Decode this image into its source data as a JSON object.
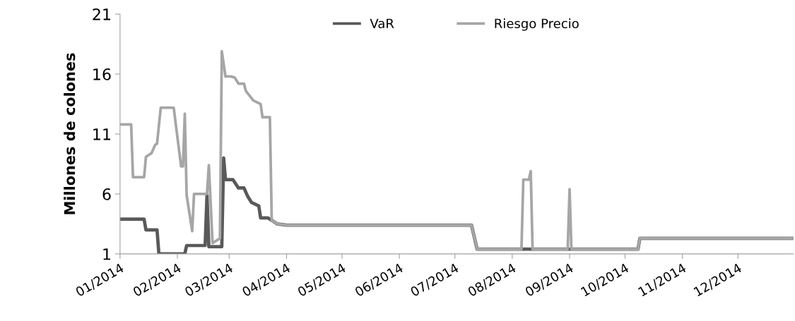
{
  "chart_data": {
    "type": "line",
    "ylabel": "Millones de colones",
    "ylim": [
      1,
      21
    ],
    "yticks": [
      1,
      6,
      11,
      16,
      21
    ],
    "xlim": [
      "2014-01-01",
      "2014-12-31"
    ],
    "xticks": [
      {
        "value": "2014-01-01",
        "label": "01/2014"
      },
      {
        "value": "2014-02-01",
        "label": "02/2014"
      },
      {
        "value": "2014-03-01",
        "label": "03/2014"
      },
      {
        "value": "2014-04-01",
        "label": "04/2014"
      },
      {
        "value": "2014-05-01",
        "label": "05/2014"
      },
      {
        "value": "2014-06-01",
        "label": "06/2014"
      },
      {
        "value": "2014-07-01",
        "label": "07/2014"
      },
      {
        "value": "2014-08-01",
        "label": "08/2014"
      },
      {
        "value": "2014-09-01",
        "label": "09/2014"
      },
      {
        "value": "2014-10-01",
        "label": "10/2014"
      },
      {
        "value": "2014-11-01",
        "label": "11/2014"
      },
      {
        "value": "2014-12-01",
        "label": "12/2014"
      }
    ],
    "grid": false,
    "legend": "top",
    "marker": "none",
    "line_style": "solid",
    "series": [
      {
        "name": "VaR",
        "color": "#595959",
        "x": [
          "2014-01-01",
          "2014-01-14",
          "2014-01-15",
          "2014-01-21",
          "2014-01-22",
          "2014-02-05",
          "2014-02-06",
          "2014-02-16",
          "2014-02-17",
          "2014-02-18",
          "2014-02-25",
          "2014-02-26",
          "2014-02-27",
          "2014-03-03",
          "2014-03-06",
          "2014-03-09",
          "2014-03-11",
          "2014-03-13",
          "2014-03-17",
          "2014-03-18",
          "2014-03-22",
          "2014-03-24",
          "2014-03-27",
          "2014-04-01",
          "2014-07-10",
          "2014-07-13",
          "2014-10-08",
          "2014-10-09",
          "2014-12-31"
        ],
        "values": [
          3.9,
          3.9,
          3.0,
          3.0,
          1.0,
          1.0,
          1.7,
          1.7,
          5.9,
          1.6,
          1.6,
          9.0,
          7.2,
          7.2,
          6.5,
          6.5,
          5.8,
          5.3,
          5.0,
          4.0,
          4.0,
          3.8,
          3.5,
          3.4,
          3.4,
          1.4,
          1.4,
          2.3,
          2.3
        ]
      },
      {
        "name": "Riesgo Precio",
        "color": "#a6a6a6",
        "x": [
          "2014-01-01",
          "2014-01-07",
          "2014-01-08",
          "2014-01-14",
          "2014-01-15",
          "2014-01-18",
          "2014-01-20",
          "2014-01-21",
          "2014-01-23",
          "2014-01-30",
          "2014-02-03",
          "2014-02-04",
          "2014-02-05",
          "2014-02-06",
          "2014-02-09",
          "2014-02-10",
          "2014-02-17",
          "2014-02-18",
          "2014-02-20",
          "2014-02-24",
          "2014-02-25",
          "2014-02-27",
          "2014-03-02",
          "2014-03-04",
          "2014-03-06",
          "2014-03-09",
          "2014-03-10",
          "2014-03-14",
          "2014-03-18",
          "2014-03-19",
          "2014-03-23",
          "2014-03-24",
          "2014-03-27",
          "2014-04-01",
          "2014-07-10",
          "2014-07-13",
          "2014-08-06",
          "2014-08-07",
          "2014-08-10",
          "2014-08-11",
          "2014-08-12",
          "2014-08-31",
          "2014-09-01",
          "2014-09-02",
          "2014-10-08",
          "2014-10-09",
          "2014-12-31"
        ],
        "values": [
          11.8,
          11.8,
          7.4,
          7.4,
          9.1,
          9.4,
          10.1,
          10.2,
          13.2,
          13.2,
          8.3,
          8.3,
          12.7,
          5.9,
          2.9,
          6.0,
          6.0,
          8.4,
          1.9,
          2.3,
          17.9,
          15.8,
          15.8,
          15.7,
          15.2,
          15.2,
          14.6,
          13.8,
          13.5,
          12.4,
          12.4,
          3.8,
          3.5,
          3.4,
          3.4,
          1.4,
          1.4,
          7.2,
          7.2,
          7.9,
          1.4,
          1.4,
          6.4,
          1.4,
          1.4,
          2.3,
          2.3
        ]
      }
    ]
  }
}
